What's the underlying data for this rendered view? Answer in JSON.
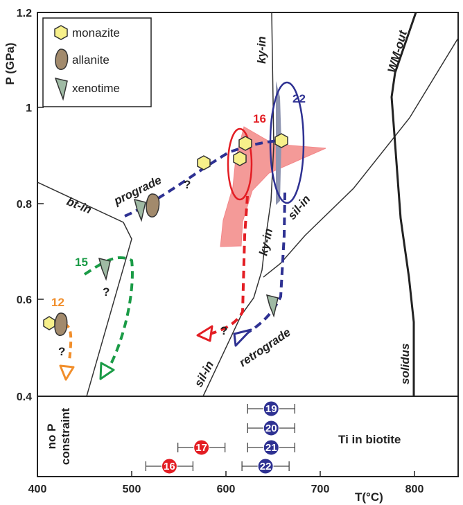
{
  "axes": {
    "xlabel": "T(°C)",
    "ylabel": "P (GPa)",
    "xticks": [
      "400",
      "500",
      "600",
      "700",
      "800"
    ],
    "yticks": [
      "1.2",
      "1",
      "0.8",
      "0.6",
      "0.4"
    ]
  },
  "legend": {
    "items": [
      {
        "label": "monazite",
        "icon": "hexagon-icon",
        "color": "#f7f08a"
      },
      {
        "label": "allanite",
        "icon": "lens-icon",
        "color": "#a28a6c"
      },
      {
        "label": "xenotime",
        "icon": "drop-icon",
        "color": "#9fbaa4"
      }
    ]
  },
  "curves": {
    "ky_in": "ky-in",
    "ky_in_lower": "ky-in",
    "sil_in_upper": "sil-in",
    "sil_in_lower": "sil-in",
    "bt_in": "bt-in",
    "wm_out": "WM-out",
    "solidus": "solidus"
  },
  "paths": {
    "prograde": "prograde",
    "retrograde": "retrograde"
  },
  "samples": {
    "s22": {
      "label": "22",
      "color": "#2e3192"
    },
    "s16": {
      "label": "16",
      "color": "#e31e24"
    },
    "s15": {
      "label": "15",
      "color": "#1a9b46"
    },
    "s12": {
      "label": "12",
      "color": "#f18e2b"
    }
  },
  "question_mark": "?",
  "ti_panel": {
    "left_label_1": "no P",
    "left_label_2": "constraint",
    "title": "Ti in biotite",
    "points": [
      {
        "label": "19",
        "T": 648,
        "err": 25,
        "color": "#2e3192"
      },
      {
        "label": "20",
        "T": 648,
        "err": 25,
        "color": "#2e3192"
      },
      {
        "label": "21",
        "T": 648,
        "err": 25,
        "color": "#2e3192"
      },
      {
        "label": "17",
        "T": 574,
        "err": 25,
        "color": "#e31e24"
      },
      {
        "label": "22",
        "T": 642,
        "err": 25,
        "color": "#2e3192"
      },
      {
        "label": "16",
        "T": 540,
        "err": 25,
        "color": "#e31e24"
      }
    ]
  }
}
